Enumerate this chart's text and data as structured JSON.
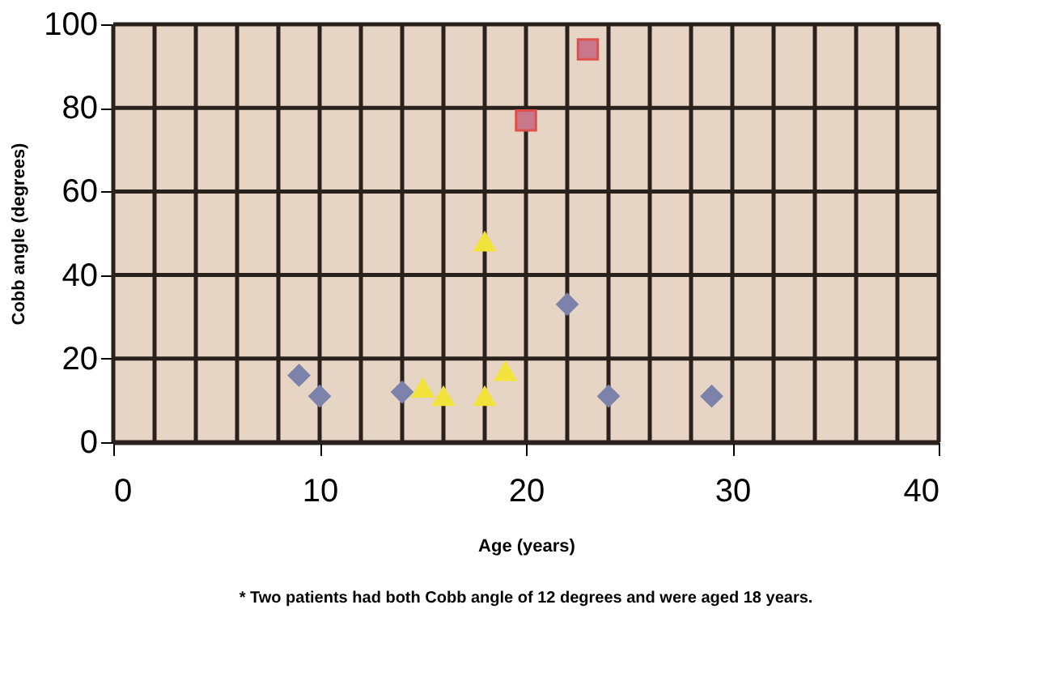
{
  "chart_data": {
    "type": "scatter",
    "xlabel": "Age (years)",
    "ylabel": "Cobb angle (degrees)",
    "xlim": [
      0,
      40
    ],
    "xticks": [
      0,
      10,
      20,
      30,
      40
    ],
    "ylim": [
      0,
      100
    ],
    "yticks": [
      0,
      20,
      40,
      60,
      80,
      100
    ],
    "grid": true,
    "series": [
      {
        "color": "#7c82aa",
        "marker": "diamond",
        "x": [
          9,
          10,
          14,
          22,
          24,
          29
        ],
        "values": [
          16,
          11,
          12,
          33,
          11,
          11
        ]
      },
      {
        "color": "#f2e23c",
        "marker": "triangle",
        "x": [
          15,
          16,
          18,
          18,
          19
        ],
        "values": [
          13,
          11,
          48,
          11,
          17
        ]
      },
      {
        "color": "#c9778a",
        "marker": "square",
        "x": [
          20,
          23
        ],
        "values": [
          77,
          94
        ]
      }
    ],
    "annotations": [
      "* Two patients had both Cobb angle of 12 degrees and were aged 18 years."
    ]
  }
}
